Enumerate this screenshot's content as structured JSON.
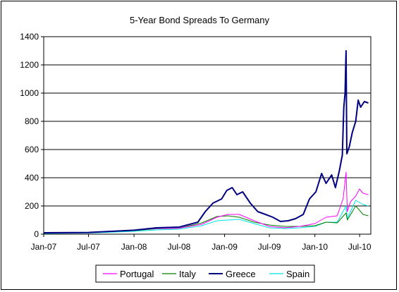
{
  "chart_data": {
    "type": "line",
    "title": "5-Year Bond Spreads To Germany",
    "xlabel": "",
    "ylabel": "",
    "ylim": [
      0,
      1400
    ],
    "yticks": [
      0,
      200,
      400,
      600,
      800,
      1000,
      1200,
      1400
    ],
    "xlim": [
      "2007-01-01",
      "2010-08-15"
    ],
    "xticks": [
      {
        "date": "2007-01-01",
        "label": "Jan-07"
      },
      {
        "date": "2007-07-01",
        "label": "Jul-07"
      },
      {
        "date": "2008-01-01",
        "label": "Jan-08"
      },
      {
        "date": "2008-07-01",
        "label": "Jul-08"
      },
      {
        "date": "2009-01-01",
        "label": "Jan-09"
      },
      {
        "date": "2009-07-01",
        "label": "Jul-09"
      },
      {
        "date": "2010-01-01",
        "label": "Jan-10"
      },
      {
        "date": "2010-07-01",
        "label": "Jul-10"
      }
    ],
    "grid": "horizontal",
    "legend_position": "bottom",
    "series": [
      {
        "name": "Portugal",
        "color": "#ff00ff",
        "points": [
          [
            "2007-01-01",
            8
          ],
          [
            "2007-07-01",
            10
          ],
          [
            "2007-10-01",
            18
          ],
          [
            "2008-01-01",
            28
          ],
          [
            "2008-04-01",
            40
          ],
          [
            "2008-07-01",
            42
          ],
          [
            "2008-10-01",
            70
          ],
          [
            "2008-12-01",
            120
          ],
          [
            "2009-01-15",
            140
          ],
          [
            "2009-03-01",
            140
          ],
          [
            "2009-05-01",
            95
          ],
          [
            "2009-07-01",
            55
          ],
          [
            "2009-09-01",
            45
          ],
          [
            "2009-11-01",
            55
          ],
          [
            "2010-01-01",
            75
          ],
          [
            "2010-02-15",
            120
          ],
          [
            "2010-04-01",
            130
          ],
          [
            "2010-04-25",
            250
          ],
          [
            "2010-05-07",
            440
          ],
          [
            "2010-05-12",
            160
          ],
          [
            "2010-05-25",
            230
          ],
          [
            "2010-06-15",
            270
          ],
          [
            "2010-06-30",
            320
          ],
          [
            "2010-07-15",
            290
          ],
          [
            "2010-08-05",
            280
          ]
        ]
      },
      {
        "name": "Italy",
        "color": "#008000",
        "points": [
          [
            "2007-01-01",
            8
          ],
          [
            "2007-07-01",
            12
          ],
          [
            "2007-10-01",
            18
          ],
          [
            "2008-01-01",
            25
          ],
          [
            "2008-04-01",
            38
          ],
          [
            "2008-07-01",
            42
          ],
          [
            "2008-10-01",
            80
          ],
          [
            "2008-12-01",
            125
          ],
          [
            "2009-01-15",
            130
          ],
          [
            "2009-03-01",
            120
          ],
          [
            "2009-05-01",
            85
          ],
          [
            "2009-07-01",
            65
          ],
          [
            "2009-09-01",
            55
          ],
          [
            "2009-11-01",
            55
          ],
          [
            "2010-01-01",
            60
          ],
          [
            "2010-02-15",
            85
          ],
          [
            "2010-04-01",
            80
          ],
          [
            "2010-05-07",
            150
          ],
          [
            "2010-05-12",
            100
          ],
          [
            "2010-06-15",
            200
          ],
          [
            "2010-07-15",
            140
          ],
          [
            "2010-08-05",
            130
          ]
        ]
      },
      {
        "name": "Greece",
        "color": "#000080",
        "points": [
          [
            "2007-01-01",
            10
          ],
          [
            "2007-07-01",
            12
          ],
          [
            "2007-10-01",
            20
          ],
          [
            "2008-01-01",
            28
          ],
          [
            "2008-04-01",
            45
          ],
          [
            "2008-07-01",
            50
          ],
          [
            "2008-09-15",
            85
          ],
          [
            "2008-10-15",
            160
          ],
          [
            "2008-11-15",
            220
          ],
          [
            "2008-12-20",
            250
          ],
          [
            "2009-01-10",
            310
          ],
          [
            "2009-02-01",
            330
          ],
          [
            "2009-02-20",
            280
          ],
          [
            "2009-03-15",
            300
          ],
          [
            "2009-04-15",
            220
          ],
          [
            "2009-05-15",
            160
          ],
          [
            "2009-06-15",
            140
          ],
          [
            "2009-07-15",
            120
          ],
          [
            "2009-08-15",
            90
          ],
          [
            "2009-09-15",
            95
          ],
          [
            "2009-10-15",
            110
          ],
          [
            "2009-11-15",
            140
          ],
          [
            "2009-12-10",
            250
          ],
          [
            "2010-01-05",
            300
          ],
          [
            "2010-01-28",
            430
          ],
          [
            "2010-02-15",
            360
          ],
          [
            "2010-03-10",
            420
          ],
          [
            "2010-03-25",
            330
          ],
          [
            "2010-04-10",
            450
          ],
          [
            "2010-04-22",
            560
          ],
          [
            "2010-04-28",
            900
          ],
          [
            "2010-05-03",
            1000
          ],
          [
            "2010-05-07",
            1300
          ],
          [
            "2010-05-10",
            570
          ],
          [
            "2010-05-20",
            620
          ],
          [
            "2010-06-01",
            720
          ],
          [
            "2010-06-15",
            800
          ],
          [
            "2010-06-25",
            950
          ],
          [
            "2010-07-05",
            900
          ],
          [
            "2010-07-20",
            940
          ],
          [
            "2010-08-05",
            930
          ]
        ]
      },
      {
        "name": "Spain",
        "color": "#00e5e5",
        "points": [
          [
            "2007-01-01",
            5
          ],
          [
            "2007-07-01",
            8
          ],
          [
            "2007-10-01",
            14
          ],
          [
            "2008-01-01",
            20
          ],
          [
            "2008-04-01",
            30
          ],
          [
            "2008-07-01",
            35
          ],
          [
            "2008-10-01",
            60
          ],
          [
            "2008-12-01",
            95
          ],
          [
            "2009-01-15",
            100
          ],
          [
            "2009-03-01",
            105
          ],
          [
            "2009-05-01",
            75
          ],
          [
            "2009-07-01",
            45
          ],
          [
            "2009-09-01",
            40
          ],
          [
            "2009-11-01",
            45
          ],
          [
            "2010-01-01",
            55
          ],
          [
            "2010-02-15",
            85
          ],
          [
            "2010-04-01",
            85
          ],
          [
            "2010-05-07",
            200
          ],
          [
            "2010-05-12",
            110
          ],
          [
            "2010-06-15",
            240
          ],
          [
            "2010-07-15",
            210
          ],
          [
            "2010-08-05",
            200
          ]
        ]
      }
    ]
  }
}
